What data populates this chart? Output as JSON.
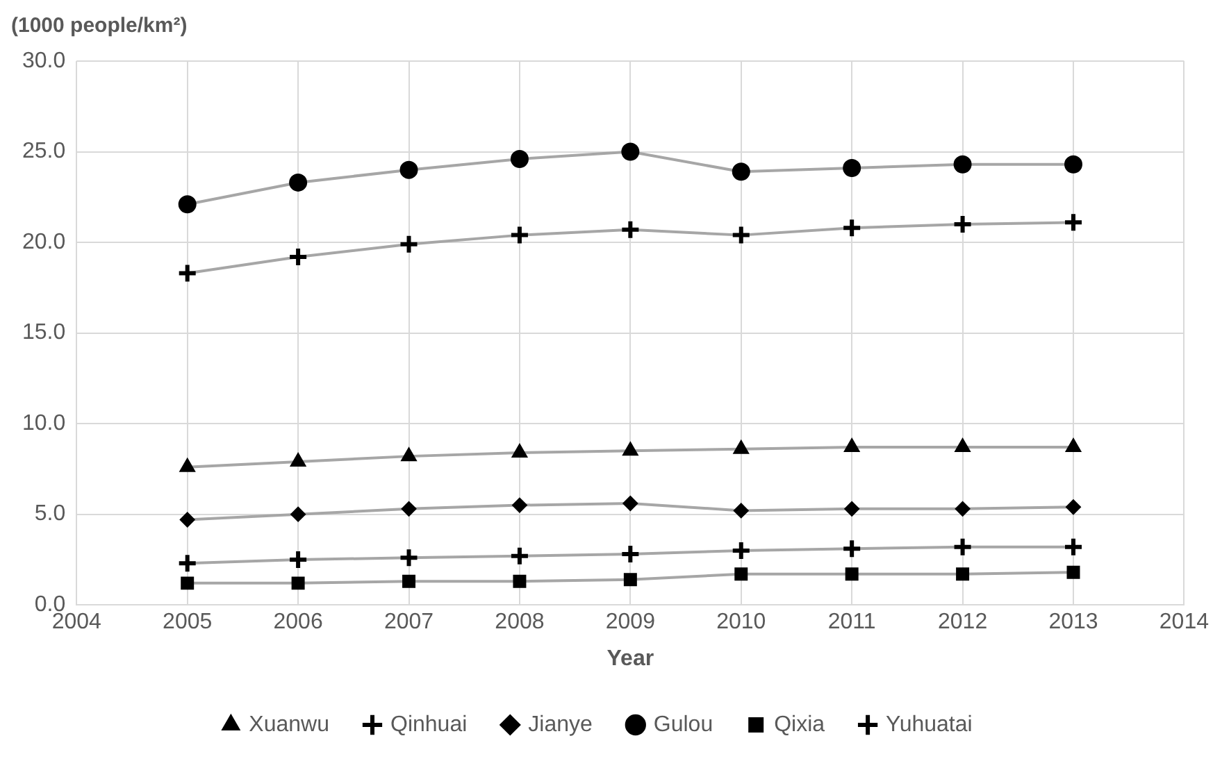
{
  "chart_data": {
    "type": "line",
    "ylabel": "(1000 people/km²)",
    "xlabel": "Year",
    "x": [
      2005,
      2006,
      2007,
      2008,
      2009,
      2010,
      2011,
      2012,
      2013
    ],
    "xlim": [
      2004,
      2014
    ],
    "xticks": [
      2004,
      2005,
      2006,
      2007,
      2008,
      2009,
      2010,
      2011,
      2012,
      2013,
      2014
    ],
    "ylim": [
      0,
      30
    ],
    "yticks": [
      {
        "value": 0,
        "label": "0.0"
      },
      {
        "value": 5,
        "label": "5.0"
      },
      {
        "value": 10,
        "label": "10.0"
      },
      {
        "value": 15,
        "label": "15.0"
      },
      {
        "value": 20,
        "label": "20.0"
      },
      {
        "value": 25,
        "label": "25.0"
      },
      {
        "value": 30,
        "label": "30.0"
      }
    ],
    "grid": true,
    "legend": "bottom",
    "series": [
      {
        "name": "Xuanwu",
        "color": "#000000",
        "marker": "triangle",
        "values": [
          7.6,
          7.9,
          8.2,
          8.4,
          8.5,
          8.6,
          8.7,
          8.7,
          8.7
        ]
      },
      {
        "name": "Qinhuai",
        "color": "#000000",
        "marker": "cross",
        "values": [
          18.3,
          19.2,
          19.9,
          20.4,
          20.7,
          20.4,
          20.8,
          21.0,
          21.1
        ]
      },
      {
        "name": "Jianye",
        "color": "#000000",
        "marker": "diamond",
        "values": [
          4.7,
          5.0,
          5.3,
          5.5,
          5.6,
          5.2,
          5.3,
          5.3,
          5.4
        ]
      },
      {
        "name": "Gulou",
        "color": "#000000",
        "marker": "circle",
        "values": [
          22.1,
          23.3,
          24.0,
          24.6,
          25.0,
          23.9,
          24.1,
          24.3,
          24.3
        ]
      },
      {
        "name": "Qixia",
        "color": "#000000",
        "marker": "square",
        "values": [
          1.2,
          1.2,
          1.3,
          1.3,
          1.4,
          1.7,
          1.7,
          1.7,
          1.8
        ]
      },
      {
        "name": "Yuhuatai",
        "color": "#000000",
        "marker": "cross",
        "values": [
          2.3,
          2.5,
          2.6,
          2.7,
          2.8,
          3.0,
          3.1,
          3.2,
          3.2
        ]
      }
    ]
  }
}
